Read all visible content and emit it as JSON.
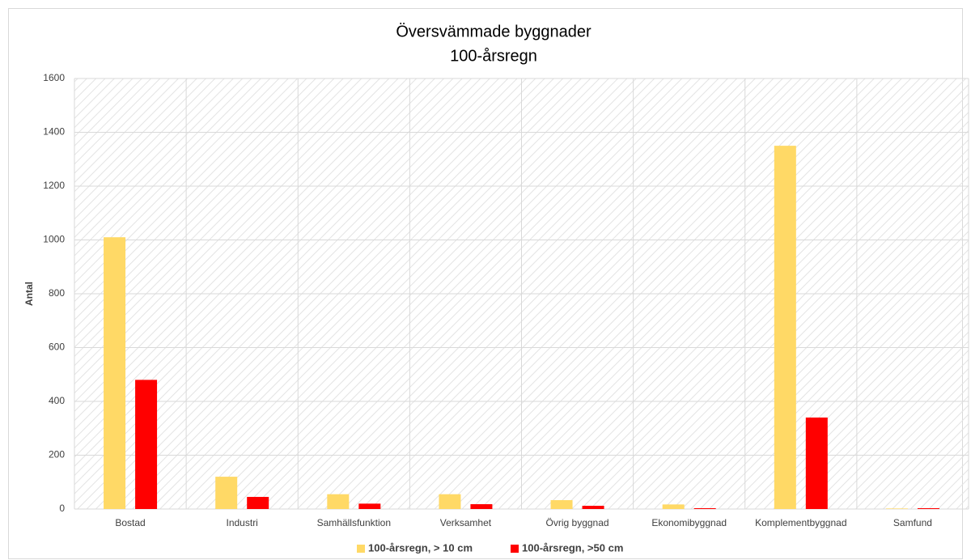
{
  "chart_data": {
    "type": "bar",
    "title": "Översvämmade byggnader",
    "subtitle": "100-årsregn",
    "y_label": "Antal",
    "categories": [
      "Bostad",
      "Industri",
      "Samhällsfunktion",
      "Verksamhet",
      "Övrig byggnad",
      "Ekonomibyggnad",
      "Komplementbyggnad",
      "Samfund"
    ],
    "series": [
      {
        "name": "100-årsregn, > 10 cm",
        "color": "#ffd966",
        "values": [
          1010,
          120,
          55,
          55,
          33,
          17,
          1350,
          2
        ]
      },
      {
        "name": "100-årsregn, >50 cm",
        "color": "#ff0000",
        "values": [
          480,
          45,
          20,
          18,
          12,
          3,
          340,
          3
        ]
      }
    ],
    "ylim": [
      0,
      1600
    ],
    "yticks": [
      0,
      200,
      400,
      600,
      800,
      1000,
      1200,
      1400,
      1600
    ],
    "grid": true,
    "legend": "bottom"
  }
}
